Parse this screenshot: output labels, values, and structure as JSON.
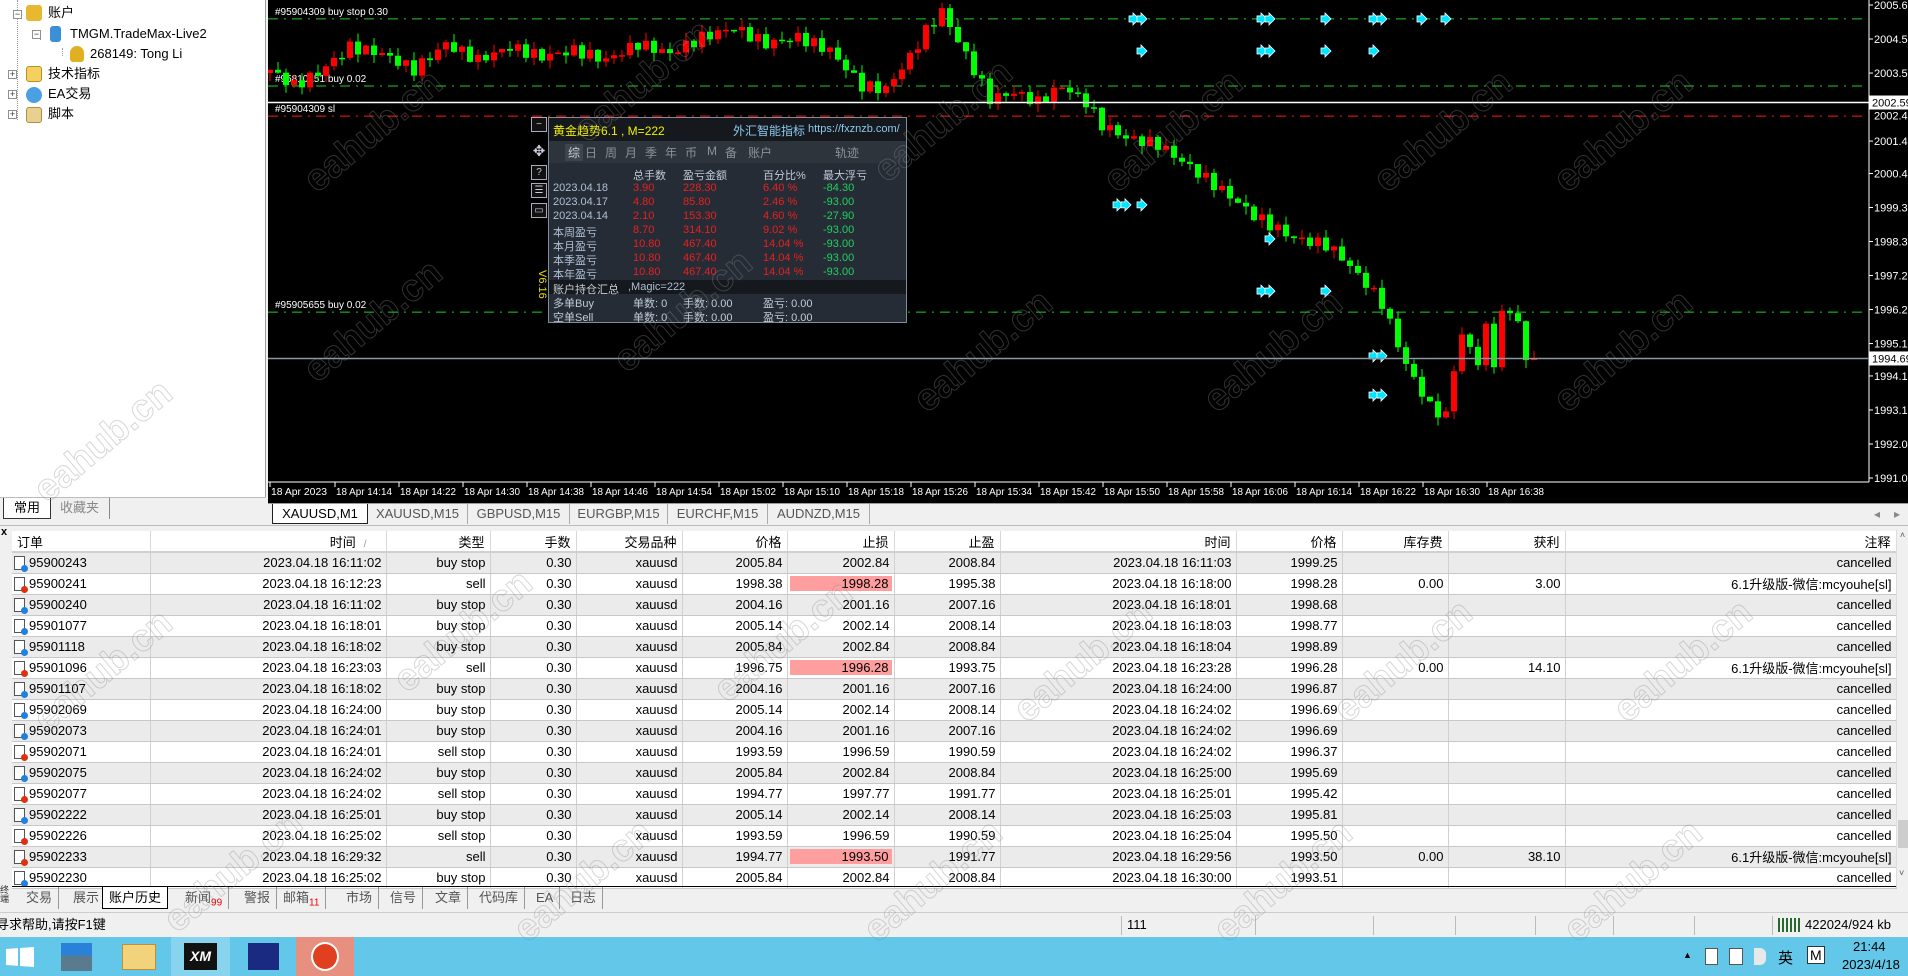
{
  "watermark": "eahub.cn",
  "navigator": {
    "items": [
      {
        "label": "账户",
        "icon": "accounts-icon"
      },
      {
        "label": "TMGM.TradeMax-Live2",
        "icon": "server-icon"
      },
      {
        "label": "268149: Tong Li",
        "icon": "user-icon"
      },
      {
        "label": "技术指标",
        "icon": "indicator-icon"
      },
      {
        "label": "EA交易",
        "icon": "expert-advisor-icon"
      },
      {
        "label": "脚本",
        "icon": "script-icon"
      }
    ],
    "tabs": [
      {
        "label": "常用",
        "active": true
      },
      {
        "label": "收藏夹",
        "active": false
      }
    ]
  },
  "chart": {
    "symbol_tabs": [
      {
        "label": "XAUUSD,M1",
        "active": true
      },
      {
        "label": "XAUUSD,M15"
      },
      {
        "label": "GBPUSD,M15"
      },
      {
        "label": "EURGBP,M15"
      },
      {
        "label": "EURCHF,M15"
      },
      {
        "label": "AUDNZD,M15"
      }
    ],
    "price_axis": [
      "2005.60",
      "2004.55",
      "2003.50",
      "2002.45",
      "2001.40",
      "2000.40",
      "1999.35",
      "1998.30",
      "1997.25",
      "1996.20",
      "1995.15",
      "1994.15",
      "1993.10",
      "1992.05",
      "1991.00"
    ],
    "price_range": [
      1991.0,
      2005.6
    ],
    "time_axis": [
      "18 Apr 2023",
      "18 Apr 14:14",
      "18 Apr 14:22",
      "18 Apr 14:30",
      "18 Apr 14:38",
      "18 Apr 14:46",
      "18 Apr 14:54",
      "18 Apr 15:02",
      "18 Apr 15:10",
      "18 Apr 15:18",
      "18 Apr 15:26",
      "18 Apr 15:34",
      "18 Apr 15:42",
      "18 Apr 15:50",
      "18 Apr 15:58",
      "18 Apr 16:06",
      "18 Apr 16:14",
      "18 Apr 16:22",
      "18 Apr 16:30",
      "18 Apr 16:38"
    ],
    "start_time": "14:06",
    "bull_color": "#ff0000",
    "bear_color": "#00ff00",
    "price_path": [
      [
        "14:06",
        2003.6
      ],
      [
        "14:09",
        2003.1
      ],
      [
        "14:12",
        2003.5
      ],
      [
        "14:16",
        2004.3
      ],
      [
        "14:20",
        2004.1
      ],
      [
        "14:24",
        2003.6
      ],
      [
        "14:28",
        2004.4
      ],
      [
        "14:32",
        2003.9
      ],
      [
        "14:36",
        2004.3
      ],
      [
        "14:40",
        2004.0
      ],
      [
        "14:44",
        2004.2
      ],
      [
        "14:48",
        2003.9
      ],
      [
        "14:52",
        2004.4
      ],
      [
        "14:56",
        2004.1
      ],
      [
        "15:00",
        2004.6
      ],
      [
        "15:04",
        2004.9
      ],
      [
        "15:08",
        2004.4
      ],
      [
        "15:12",
        2004.6
      ],
      [
        "15:16",
        2004.2
      ],
      [
        "15:20",
        2003.1
      ],
      [
        "15:23",
        2003.0
      ],
      [
        "15:26",
        2004.0
      ],
      [
        "15:28",
        2004.8
      ],
      [
        "15:30",
        2005.4
      ],
      [
        "15:32",
        2004.5
      ],
      [
        "15:34",
        2003.6
      ],
      [
        "15:36",
        2002.7
      ],
      [
        "15:39",
        2002.9
      ],
      [
        "15:42",
        2002.6
      ],
      [
        "15:45",
        2003.1
      ],
      [
        "15:48",
        2002.6
      ],
      [
        "15:50",
        2001.9
      ],
      [
        "15:53",
        2001.5
      ],
      [
        "15:57",
        2001.3
      ],
      [
        "16:01",
        2000.6
      ],
      [
        "16:06",
        1999.7
      ],
      [
        "16:09",
        1999.1
      ],
      [
        "16:14",
        1998.4
      ],
      [
        "16:18",
        1998.2
      ],
      [
        "16:20",
        1997.8
      ],
      [
        "16:23",
        1997.0
      ],
      [
        "16:25",
        1996.4
      ],
      [
        "16:28",
        1994.5
      ],
      [
        "16:31",
        1993.2
      ],
      [
        "16:33",
        1992.9
      ],
      [
        "16:34",
        1994.4
      ],
      [
        "16:35",
        1995.4
      ],
      [
        "16:37",
        1994.6
      ],
      [
        "16:38",
        1995.6
      ],
      [
        "16:39",
        1994.6
      ],
      [
        "16:40",
        1996.0
      ],
      [
        "16:41",
        1996.2
      ],
      [
        "16:42",
        1995.8
      ],
      [
        "16:43",
        1994.6
      ],
      [
        "16:44",
        1994.69
      ]
    ],
    "order_lines": [
      {
        "label": "#95904309 buy stop 0.30",
        "price": 2005.17,
        "color": "#22cc22"
      },
      {
        "label": "#95810151 buy 0.02",
        "price": 2003.1,
        "color": "#22cc22"
      },
      {
        "label": "#95904309 sl",
        "price": 2002.17,
        "color": "#ff1a1a"
      },
      {
        "label": "#95905655 buy 0.02",
        "price": 1996.12,
        "color": "#22cc22"
      }
    ],
    "ask_line": {
      "price": 2002.59,
      "label": "2002.59",
      "color": "#ffffff"
    },
    "bid_line": {
      "price": 1994.69,
      "label": "1994.69",
      "color": "#8a96a0"
    },
    "arrow_markers": [
      [
        "15:54",
        2005.17
      ],
      [
        "15:55",
        2005.17
      ],
      [
        "16:10",
        2005.17
      ],
      [
        "16:11",
        2005.17
      ],
      [
        "16:18",
        2005.17
      ],
      [
        "16:24",
        2005.17
      ],
      [
        "16:25",
        2005.17
      ],
      [
        "16:30",
        2005.17
      ],
      [
        "16:33",
        2005.17
      ],
      [
        "15:55",
        2004.18
      ],
      [
        "16:10",
        2004.18
      ],
      [
        "16:11",
        2004.18
      ],
      [
        "16:18",
        2004.18
      ],
      [
        "16:24",
        2004.18
      ],
      [
        "15:52",
        1999.43
      ],
      [
        "15:53",
        1999.43
      ],
      [
        "15:55",
        1999.43
      ],
      [
        "16:11",
        1998.38
      ],
      [
        "16:10",
        1996.77
      ],
      [
        "16:11",
        1996.77
      ],
      [
        "16:18",
        1996.77
      ],
      [
        "16:24",
        1994.77
      ],
      [
        "16:25",
        1994.77
      ],
      [
        "16:24",
        1993.56
      ],
      [
        "16:25",
        1993.56
      ]
    ],
    "marker_color": "#00e5ff",
    "version_label": "V6.16"
  },
  "panel": {
    "title": "黄金趋势6.1 , M=222",
    "brand": "外汇智能指标",
    "url": "https://fxznzb.com/",
    "tabs": [
      "综",
      "日",
      "周",
      "月",
      "季",
      "年",
      "币",
      "M",
      "备",
      "账户",
      "轨迹"
    ],
    "headers": [
      "总手数",
      "盈亏金额",
      "百分比%",
      "最大浮亏"
    ],
    "rows": [
      {
        "label": "2023.04.18",
        "lots": "3.90",
        "pl": "228.30",
        "pct": "6.40 %",
        "maxdd": "-84.30"
      },
      {
        "label": "2023.04.17",
        "lots": "4.80",
        "pl": "85.80",
        "pct": "2.46 %",
        "maxdd": "-93.00"
      },
      {
        "label": "2023.04.14",
        "lots": "2.10",
        "pl": "153.30",
        "pct": "4.60 %",
        "maxdd": "-27.90"
      },
      {
        "label": "本周盈亏",
        "lots": "8.70",
        "pl": "314.10",
        "pct": "9.02 %",
        "maxdd": "-93.00"
      },
      {
        "label": "本月盈亏",
        "lots": "10.80",
        "pl": "467.40",
        "pct": "14.04 %",
        "maxdd": "-93.00"
      },
      {
        "label": "本季盈亏",
        "lots": "10.80",
        "pl": "467.40",
        "pct": "14.04 %",
        "maxdd": "-93.00"
      },
      {
        "label": "本年盈亏",
        "lots": "10.80",
        "pl": "467.40",
        "pct": "14.04 %",
        "maxdd": "-93.00"
      }
    ],
    "summary_title": "账户持仓汇总",
    "summary_magic": " ,Magic=222",
    "positions": [
      {
        "label": "多单Buy",
        "count": "单数: 0",
        "lots": "手数: 0.00",
        "pl": "盈亏: 0.00"
      },
      {
        "label": "空单Sell",
        "count": "单数: 0",
        "lots": "手数: 0.00",
        "pl": "盈亏: 0.00"
      }
    ]
  },
  "history": {
    "columns": [
      "订单",
      "时间",
      "类型",
      "手数",
      "交易品种",
      "价格",
      "止损",
      "止盈",
      "时间",
      "价格",
      "库存费",
      "获利",
      "注释"
    ],
    "sort_indicator": "/",
    "rows": [
      [
        "95900243",
        "2023.04.18 16:11:02",
        "buy stop",
        "0.30",
        "xauusd",
        "2005.84",
        "2002.84",
        "2008.84",
        "2023.04.18 16:11:03",
        "1999.25",
        "",
        "",
        "cancelled"
      ],
      [
        "95900241",
        "2023.04.18 16:12:23",
        "sell",
        "0.30",
        "xauusd",
        "1998.38",
        "1998.28",
        "1995.38",
        "2023.04.18 16:18:00",
        "1998.28",
        "0.00",
        "3.00",
        "6.1升级版-微信:mcyouhe[sl]"
      ],
      [
        "95900240",
        "2023.04.18 16:11:02",
        "buy stop",
        "0.30",
        "xauusd",
        "2004.16",
        "2001.16",
        "2007.16",
        "2023.04.18 16:18:01",
        "1998.68",
        "",
        "",
        "cancelled"
      ],
      [
        "95901077",
        "2023.04.18 16:18:01",
        "buy stop",
        "0.30",
        "xauusd",
        "2005.14",
        "2002.14",
        "2008.14",
        "2023.04.18 16:18:03",
        "1998.77",
        "",
        "",
        "cancelled"
      ],
      [
        "95901118",
        "2023.04.18 16:18:02",
        "buy stop",
        "0.30",
        "xauusd",
        "2005.84",
        "2002.84",
        "2008.84",
        "2023.04.18 16:18:04",
        "1998.89",
        "",
        "",
        "cancelled"
      ],
      [
        "95901096",
        "2023.04.18 16:23:03",
        "sell",
        "0.30",
        "xauusd",
        "1996.75",
        "1996.28",
        "1993.75",
        "2023.04.18 16:23:28",
        "1996.28",
        "0.00",
        "14.10",
        "6.1升级版-微信:mcyouhe[sl]"
      ],
      [
        "95901107",
        "2023.04.18 16:18:02",
        "buy stop",
        "0.30",
        "xauusd",
        "2004.16",
        "2001.16",
        "2007.16",
        "2023.04.18 16:24:00",
        "1996.87",
        "",
        "",
        "cancelled"
      ],
      [
        "95902069",
        "2023.04.18 16:24:00",
        "buy stop",
        "0.30",
        "xauusd",
        "2005.14",
        "2002.14",
        "2008.14",
        "2023.04.18 16:24:02",
        "1996.69",
        "",
        "",
        "cancelled"
      ],
      [
        "95902073",
        "2023.04.18 16:24:01",
        "buy stop",
        "0.30",
        "xauusd",
        "2004.16",
        "2001.16",
        "2007.16",
        "2023.04.18 16:24:02",
        "1996.69",
        "",
        "",
        "cancelled"
      ],
      [
        "95902071",
        "2023.04.18 16:24:01",
        "sell stop",
        "0.30",
        "xauusd",
        "1993.59",
        "1996.59",
        "1990.59",
        "2023.04.18 16:24:02",
        "1996.37",
        "",
        "",
        "cancelled"
      ],
      [
        "95902075",
        "2023.04.18 16:24:02",
        "buy stop",
        "0.30",
        "xauusd",
        "2005.84",
        "2002.84",
        "2008.84",
        "2023.04.18 16:25:00",
        "1995.69",
        "",
        "",
        "cancelled"
      ],
      [
        "95902077",
        "2023.04.18 16:24:02",
        "sell stop",
        "0.30",
        "xauusd",
        "1994.77",
        "1997.77",
        "1991.77",
        "2023.04.18 16:25:01",
        "1995.42",
        "",
        "",
        "cancelled"
      ],
      [
        "95902222",
        "2023.04.18 16:25:01",
        "buy stop",
        "0.30",
        "xauusd",
        "2005.14",
        "2002.14",
        "2008.14",
        "2023.04.18 16:25:03",
        "1995.81",
        "",
        "",
        "cancelled"
      ],
      [
        "95902226",
        "2023.04.18 16:25:02",
        "sell stop",
        "0.30",
        "xauusd",
        "1993.59",
        "1996.59",
        "1990.59",
        "2023.04.18 16:25:04",
        "1995.50",
        "",
        "",
        "cancelled"
      ],
      [
        "95902233",
        "2023.04.18 16:29:32",
        "sell",
        "0.30",
        "xauusd",
        "1994.77",
        "1993.50",
        "1991.77",
        "2023.04.18 16:29:56",
        "1993.50",
        "0.00",
        "38.10",
        "6.1升级版-微信:mcyouhe[sl]"
      ],
      [
        "95902230",
        "2023.04.18 16:25:02",
        "buy stop",
        "0.30",
        "xauusd",
        "2005.84",
        "2002.84",
        "2008.84",
        "2023.04.18 16:30:00",
        "1993.51",
        "",
        "",
        "cancelled"
      ]
    ],
    "sl_hit_color": "#ff9e9e"
  },
  "terminal_tabs": [
    {
      "label": "交易"
    },
    {
      "label": "展示"
    },
    {
      "label": "账户历史",
      "active": true
    },
    {
      "label": "新闻",
      "badge": "99"
    },
    {
      "label": "警报"
    },
    {
      "label": "邮箱",
      "badge": "11"
    },
    {
      "label": "市场"
    },
    {
      "label": "信号"
    },
    {
      "label": "文章"
    },
    {
      "label": "代码库"
    },
    {
      "label": "EA"
    },
    {
      "label": "日志"
    }
  ],
  "terminal_side_label": "终端",
  "status": {
    "help": "寻求帮助,请按F1键",
    "bars": "111",
    "traffic": "422024/924 kb"
  },
  "taskbar": {
    "apps": [
      "start-button",
      "server-manager",
      "file-explorer",
      "XM",
      "MT4",
      "app-x"
    ],
    "xm_label": "XM",
    "tray_ime": "英",
    "tray_m": "M",
    "time": "21:44",
    "date": "2023/4/18"
  }
}
